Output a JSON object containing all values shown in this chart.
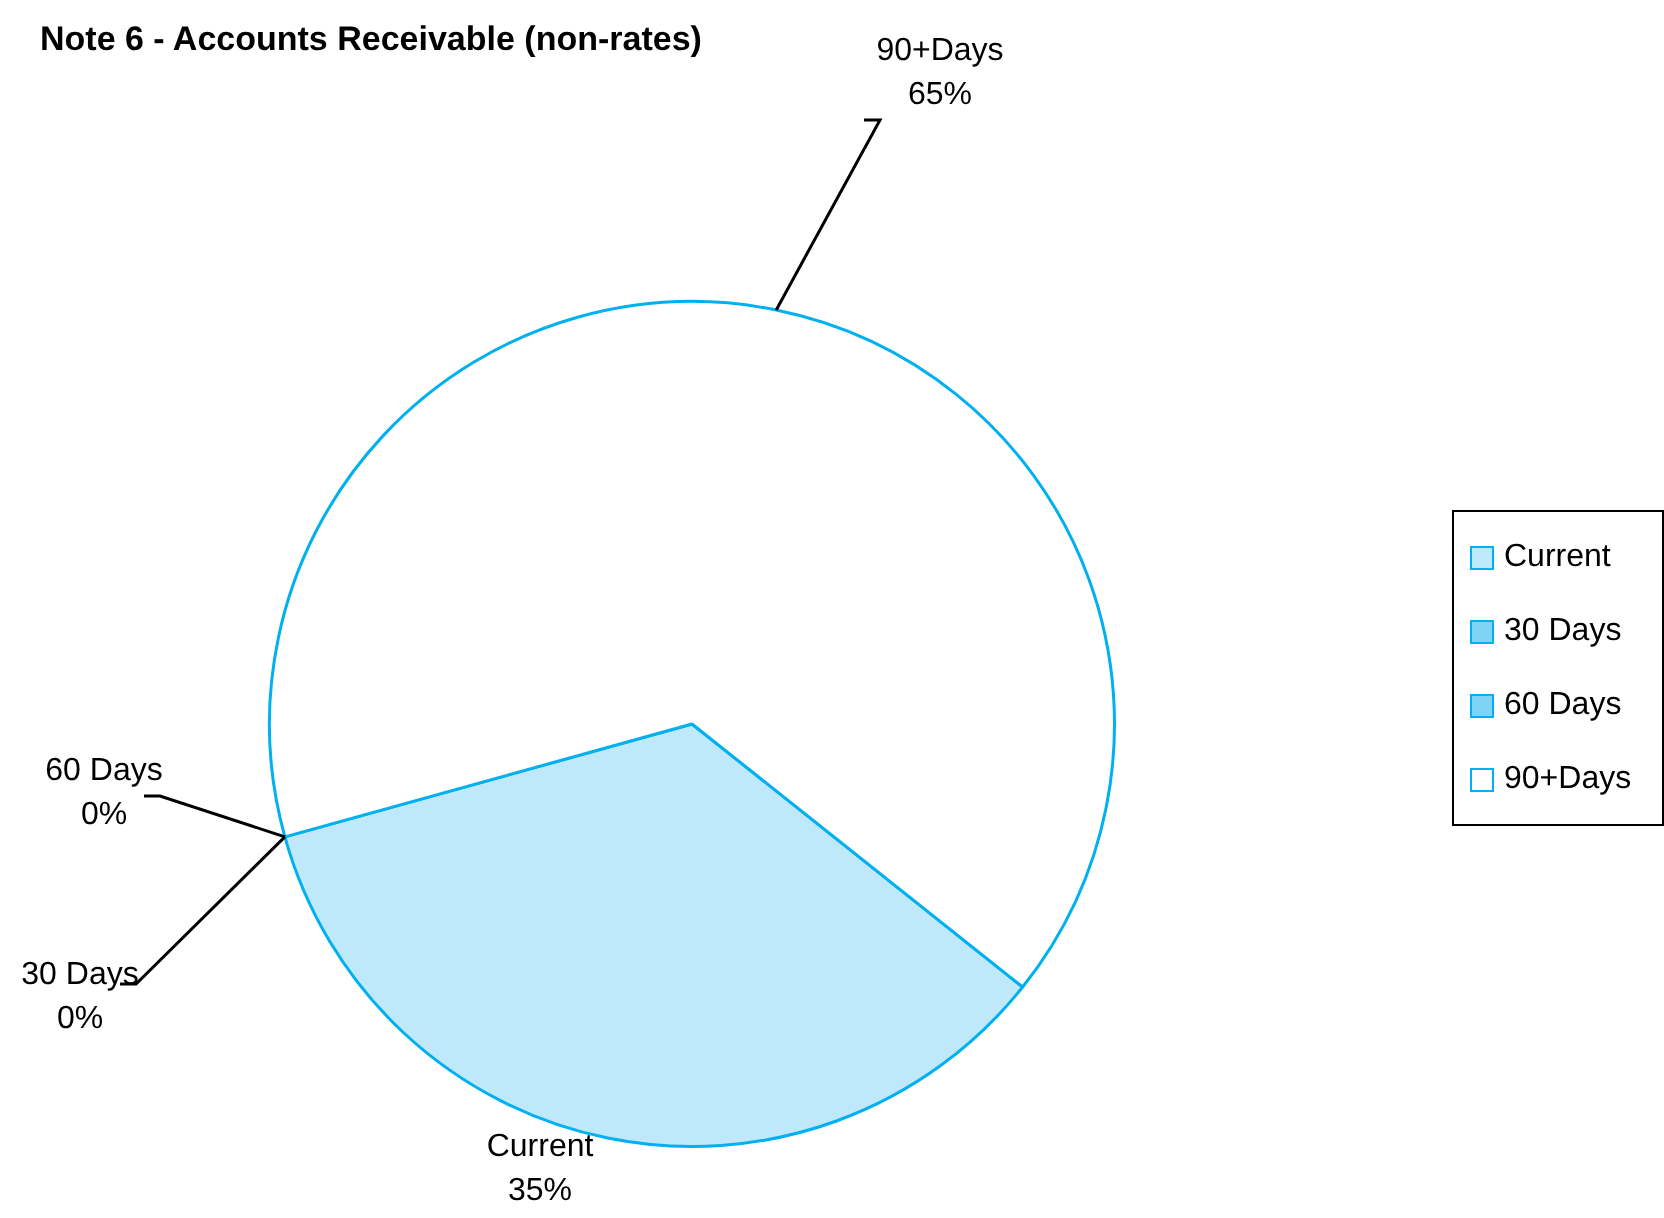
{
  "chart_data": {
    "type": "pie",
    "title": "Note 6 - Accounts Receivable (non-rates)",
    "categories": [
      "Current",
      "30 Days",
      "60 Days",
      "90+Days"
    ],
    "values": [
      35,
      0,
      0,
      65
    ],
    "value_labels": [
      "35%",
      "0%",
      "0%",
      "65%"
    ],
    "colors": [
      "#bfe9fa",
      "#7fd3f4",
      "#7fd3f4",
      "#ffffff"
    ],
    "legend": "right"
  }
}
